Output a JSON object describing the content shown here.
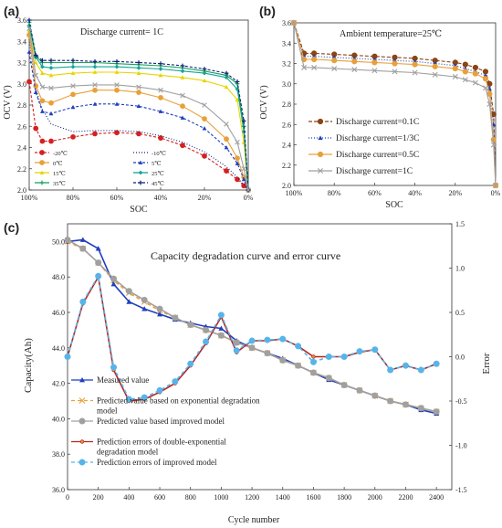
{
  "colors": {
    "brown": "#8B4513",
    "blue": "#1f3fbf",
    "orange": "#e9a03a",
    "gray": "#a0a0a0",
    "yellow": "#e8d400",
    "green": "#1aa35b",
    "teal": "#14a59a",
    "red": "#d62020",
    "darkblue": "#10237a",
    "lightblue": "#58b4e8",
    "purple": "#5a3aa0"
  },
  "chart_data": [
    {
      "id": "a",
      "type": "line",
      "panel_label": "(a)",
      "annotation": "Discharge current= 1C",
      "xlabel": "SOC",
      "ylabel": "OCV (V)",
      "xlim": [
        100,
        0
      ],
      "ylim": [
        2.0,
        3.6
      ],
      "xticks": [
        100,
        80,
        60,
        40,
        20,
        0
      ],
      "xtick_labels": [
        "100%",
        "80%",
        "60%",
        "40%",
        "20%",
        "0%"
      ],
      "yticks": [
        2.0,
        2.2,
        2.4,
        2.6,
        2.8,
        3.0,
        3.2,
        3.4,
        3.6
      ],
      "ytick_labels": [
        "2.0",
        "2.2",
        "2.4",
        "2.6",
        "2.8",
        "3.0",
        "3.2",
        "3.4",
        "3.6"
      ],
      "legend": {
        "position": "bottom-left",
        "columns": 2
      },
      "series": [
        {
          "name": "-20℃",
          "color": "#d62020",
          "dash": "3,2",
          "marker": "circle",
          "x": [
            100,
            97,
            94,
            90,
            80,
            70,
            60,
            50,
            40,
            30,
            20,
            10,
            5,
            2,
            0
          ],
          "y": [
            3.02,
            2.58,
            2.46,
            2.46,
            2.5,
            2.53,
            2.54,
            2.53,
            2.49,
            2.42,
            2.32,
            2.18,
            2.1,
            2.04,
            2.0
          ]
        },
        {
          "name": "-10℃",
          "color": "#10237a",
          "dash": "1,2",
          "marker": "none",
          "x": [
            100,
            97,
            94,
            90,
            80,
            70,
            60,
            50,
            40,
            30,
            20,
            10,
            5,
            2,
            0
          ],
          "y": [
            3.42,
            2.95,
            2.76,
            2.62,
            2.55,
            2.56,
            2.56,
            2.55,
            2.51,
            2.45,
            2.36,
            2.22,
            2.12,
            2.05,
            2.0
          ]
        },
        {
          "name": "0℃",
          "color": "#e9a03a",
          "dash": "",
          "marker": "circle",
          "x": [
            100,
            97,
            94,
            90,
            80,
            70,
            60,
            50,
            40,
            30,
            20,
            10,
            5,
            2,
            0
          ],
          "y": [
            3.46,
            2.98,
            2.84,
            2.82,
            2.9,
            2.94,
            2.94,
            2.92,
            2.87,
            2.79,
            2.67,
            2.48,
            2.3,
            2.12,
            2.0
          ]
        },
        {
          "name": "5℃",
          "color": "#1f3fbf",
          "dash": "3,2",
          "marker": "triangle",
          "x": [
            100,
            97,
            94,
            90,
            80,
            70,
            60,
            50,
            40,
            30,
            20,
            10,
            5,
            2,
            0
          ],
          "y": [
            3.3,
            2.92,
            2.74,
            2.72,
            2.78,
            2.81,
            2.81,
            2.79,
            2.74,
            2.68,
            2.58,
            2.4,
            2.25,
            2.1,
            2.0
          ]
        },
        {
          "name": "15℃",
          "color": "#e8d400",
          "dash": "",
          "marker": "triangle",
          "x": [
            100,
            97,
            94,
            90,
            80,
            70,
            60,
            50,
            40,
            30,
            20,
            10,
            5,
            2,
            0
          ],
          "y": [
            3.5,
            3.2,
            3.1,
            3.08,
            3.1,
            3.11,
            3.11,
            3.1,
            3.08,
            3.06,
            3.03,
            2.97,
            2.85,
            2.45,
            2.0
          ]
        },
        {
          "name": "25℃",
          "color": "#14a59a",
          "dash": "",
          "marker": "diamond",
          "x": [
            100,
            97,
            94,
            90,
            80,
            70,
            60,
            50,
            40,
            30,
            20,
            10,
            5,
            2,
            0
          ],
          "y": [
            3.55,
            3.25,
            3.16,
            3.15,
            3.16,
            3.16,
            3.16,
            3.15,
            3.14,
            3.12,
            3.1,
            3.06,
            2.95,
            2.55,
            2.0
          ]
        },
        {
          "name": "35℃",
          "color": "#1aa35b",
          "dash": "",
          "marker": "plus",
          "x": [
            100,
            97,
            94,
            90,
            80,
            70,
            60,
            50,
            40,
            30,
            20,
            10,
            5,
            2,
            0
          ],
          "y": [
            3.58,
            3.26,
            3.2,
            3.2,
            3.2,
            3.2,
            3.19,
            3.18,
            3.17,
            3.15,
            3.12,
            3.08,
            3.0,
            2.6,
            2.0
          ]
        },
        {
          "name": "45℃",
          "color": "#10237a",
          "dash": "3,2",
          "marker": "plus",
          "x": [
            100,
            97,
            94,
            90,
            80,
            70,
            60,
            50,
            40,
            30,
            20,
            10,
            5,
            2,
            0
          ],
          "y": [
            3.6,
            3.27,
            3.22,
            3.22,
            3.22,
            3.21,
            3.21,
            3.2,
            3.19,
            3.17,
            3.14,
            3.1,
            3.02,
            2.65,
            2.0
          ]
        },
        {
          "name": "",
          "color": "#a0a0a0",
          "dash": "",
          "marker": "cross",
          "x": [
            100,
            97,
            94,
            90,
            80,
            70,
            60,
            50,
            40,
            30,
            20,
            10,
            5,
            2,
            0
          ],
          "y": [
            3.52,
            3.08,
            2.97,
            2.96,
            2.98,
            2.99,
            2.99,
            2.97,
            2.94,
            2.89,
            2.8,
            2.62,
            2.45,
            2.2,
            2.0
          ]
        }
      ]
    },
    {
      "id": "b",
      "type": "line",
      "panel_label": "(b)",
      "annotation": "Ambient temperature=25℃",
      "xlabel": "SOC",
      "ylabel": "OCV (V)",
      "xlim": [
        100,
        0
      ],
      "ylim": [
        2.0,
        3.6
      ],
      "xticks": [
        100,
        80,
        60,
        40,
        20,
        0
      ],
      "xtick_labels": [
        "100%",
        "80%",
        "60%",
        "40%",
        "20%",
        "0%"
      ],
      "yticks": [
        2.0,
        2.2,
        2.4,
        2.6,
        2.8,
        3.0,
        3.2,
        3.4,
        3.6
      ],
      "ytick_labels": [
        "2.0",
        "2.2",
        "2.4",
        "2.6",
        "2.8",
        "3.0",
        "3.2",
        "3.4",
        "3.6"
      ],
      "legend": {
        "position": "bottom-left",
        "columns": 1
      },
      "series": [
        {
          "name": "Discharge current=0.1C",
          "color": "#8B4513",
          "dash": "4,2",
          "marker": "circle",
          "x": [
            100,
            95,
            90,
            80,
            70,
            60,
            50,
            40,
            30,
            20,
            15,
            10,
            5,
            3,
            1,
            0
          ],
          "y": [
            3.6,
            3.3,
            3.3,
            3.29,
            3.28,
            3.27,
            3.26,
            3.25,
            3.23,
            3.21,
            3.19,
            3.16,
            3.12,
            3.0,
            2.7,
            2.0
          ]
        },
        {
          "name": "Discharge current=1/3C",
          "color": "#1f3fbf",
          "dash": "1,2",
          "marker": "triangle",
          "x": [
            100,
            95,
            90,
            80,
            70,
            60,
            50,
            40,
            30,
            20,
            15,
            10,
            5,
            3,
            1,
            0
          ],
          "y": [
            3.6,
            3.27,
            3.27,
            3.26,
            3.25,
            3.24,
            3.23,
            3.22,
            3.2,
            3.18,
            3.15,
            3.12,
            3.08,
            2.95,
            2.6,
            2.0
          ]
        },
        {
          "name": "Discharge current=0.5C",
          "color": "#e9a03a",
          "dash": "",
          "marker": "circle",
          "x": [
            100,
            95,
            90,
            80,
            70,
            60,
            50,
            40,
            30,
            20,
            15,
            10,
            5,
            3,
            1,
            0
          ],
          "y": [
            3.6,
            3.24,
            3.24,
            3.23,
            3.22,
            3.21,
            3.2,
            3.19,
            3.17,
            3.15,
            3.12,
            3.1,
            3.05,
            2.9,
            2.45,
            2.0
          ]
        },
        {
          "name": "Discharge current=1C",
          "color": "#a0a0a0",
          "dash": "",
          "marker": "cross",
          "x": [
            100,
            95,
            90,
            80,
            70,
            60,
            50,
            40,
            30,
            20,
            15,
            10,
            5,
            3,
            1,
            0
          ],
          "y": [
            3.6,
            3.16,
            3.16,
            3.15,
            3.14,
            3.13,
            3.12,
            3.11,
            3.09,
            3.07,
            3.04,
            3.01,
            2.96,
            2.8,
            2.4,
            2.0
          ]
        }
      ]
    },
    {
      "id": "c",
      "type": "line",
      "panel_label": "(c)",
      "title": "Capacity degradation curve and error curve",
      "xlabel": "Cycle number",
      "ylabel": "Capacity(Ah)",
      "ylabel_right": "Error",
      "xlim": [
        0,
        2500
      ],
      "ylim": [
        36.0,
        51.0
      ],
      "ylim_right": [
        -1.5,
        1.5
      ],
      "xticks": [
        0,
        200,
        400,
        600,
        800,
        1000,
        1200,
        1400,
        1600,
        1800,
        2000,
        2200,
        2400
      ],
      "xtick_labels": [
        "0",
        "200",
        "400",
        "600",
        "800",
        "1000",
        "1200",
        "1400",
        "1600",
        "1800",
        "2000",
        "2200",
        "2400"
      ],
      "yticks": [
        36.0,
        38.0,
        40.0,
        42.0,
        44.0,
        46.0,
        48.0,
        50.0
      ],
      "ytick_labels": [
        "36.0",
        "38.0",
        "40.0",
        "42.0",
        "44.0",
        "46.0",
        "48.0",
        "50.0"
      ],
      "yticks_right": [
        -1.5,
        -1.0,
        -0.5,
        0.0,
        0.5,
        1.0,
        1.5
      ],
      "ytick_labels_right": [
        "-1.5",
        "-1.0",
        "-0.5",
        "0.0",
        "0.5",
        "1.0",
        "1.5"
      ],
      "legend": {
        "position": "bottom-left",
        "columns": 1
      },
      "series": [
        {
          "name": "Measured value",
          "axis": "left",
          "color": "#1f3fbf",
          "dash": "",
          "marker": "triangle",
          "x": [
            0,
            100,
            200,
            300,
            400,
            500,
            600,
            700,
            800,
            900,
            1000,
            1100,
            1200,
            1300,
            1400,
            1500,
            1600,
            1700,
            1800,
            1900,
            2000,
            2100,
            2200,
            2300,
            2400
          ],
          "y": [
            50.0,
            50.1,
            49.6,
            47.6,
            46.6,
            46.2,
            45.9,
            45.6,
            45.4,
            45.2,
            45.1,
            44.4,
            44.0,
            43.7,
            43.4,
            43.0,
            42.6,
            42.2,
            41.9,
            41.6,
            41.3,
            41.0,
            40.8,
            40.5,
            40.3
          ]
        },
        {
          "name": "Predicted value based on exponential degradation model",
          "axis": "left",
          "color": "#e9a03a",
          "dash": "4,3",
          "marker": "cross",
          "x": [
            0,
            100,
            200,
            300,
            400,
            500,
            600,
            700,
            800,
            900,
            1000,
            1100,
            1200,
            1300,
            1400,
            1500,
            1600,
            1700,
            1800,
            1900,
            2000,
            2100,
            2200,
            2300,
            2400
          ],
          "y": [
            50.0,
            49.6,
            48.8,
            47.8,
            47.1,
            46.6,
            46.1,
            45.7,
            45.3,
            45.0,
            44.7,
            44.3,
            44.0,
            43.7,
            43.3,
            43.0,
            42.6,
            42.3,
            41.9,
            41.6,
            41.3,
            41.0,
            40.8,
            40.6,
            40.4
          ]
        },
        {
          "name": "Predicted value based improved model",
          "axis": "left",
          "color": "#a0a0a0",
          "dash": "",
          "marker": "circle",
          "x": [
            0,
            100,
            200,
            300,
            400,
            500,
            600,
            700,
            800,
            900,
            1000,
            1100,
            1200,
            1300,
            1400,
            1500,
            1600,
            1700,
            1800,
            1900,
            2000,
            2100,
            2200,
            2300,
            2400
          ],
          "y": [
            50.1,
            49.6,
            48.8,
            47.9,
            47.2,
            46.7,
            46.2,
            45.7,
            45.3,
            45.0,
            44.7,
            44.3,
            44.0,
            43.7,
            43.3,
            43.0,
            42.6,
            42.3,
            41.9,
            41.6,
            41.3,
            41.0,
            40.8,
            40.6,
            40.4
          ]
        },
        {
          "name": "Prediction errors of double-exponential degradation model",
          "axis": "right",
          "color": "#b8231e",
          "dash": "",
          "marker": "dot",
          "x": [
            0,
            100,
            200,
            300,
            400,
            500,
            600,
            700,
            800,
            900,
            1000,
            1100,
            1200,
            1300,
            1400,
            1500,
            1600,
            1700,
            1800,
            1900,
            2000,
            2100,
            2200,
            2300,
            2400
          ],
          "y": [
            0.0,
            0.6,
            0.9,
            -0.15,
            -0.5,
            -0.48,
            -0.4,
            -0.3,
            -0.1,
            0.15,
            0.45,
            0.05,
            0.18,
            0.18,
            0.2,
            0.12,
            0.0,
            0.0,
            0.0,
            0.05,
            0.08,
            -0.15,
            -0.1,
            -0.15,
            -0.08
          ]
        },
        {
          "name": "Prediction errors of improved model",
          "axis": "right",
          "color": "#58b4e8",
          "dash": "4,3",
          "marker": "circle",
          "x": [
            0,
            100,
            200,
            300,
            400,
            500,
            600,
            700,
            800,
            900,
            1000,
            1100,
            1200,
            1300,
            1400,
            1500,
            1600,
            1700,
            1800,
            1900,
            2000,
            2100,
            2200,
            2300,
            2400
          ],
          "y": [
            0.0,
            0.62,
            0.91,
            -0.12,
            -0.48,
            -0.46,
            -0.38,
            -0.28,
            -0.08,
            0.17,
            0.47,
            0.07,
            0.18,
            0.19,
            0.2,
            0.12,
            -0.06,
            0.0,
            0.0,
            0.06,
            0.08,
            -0.15,
            -0.1,
            -0.15,
            -0.08
          ]
        }
      ]
    }
  ]
}
